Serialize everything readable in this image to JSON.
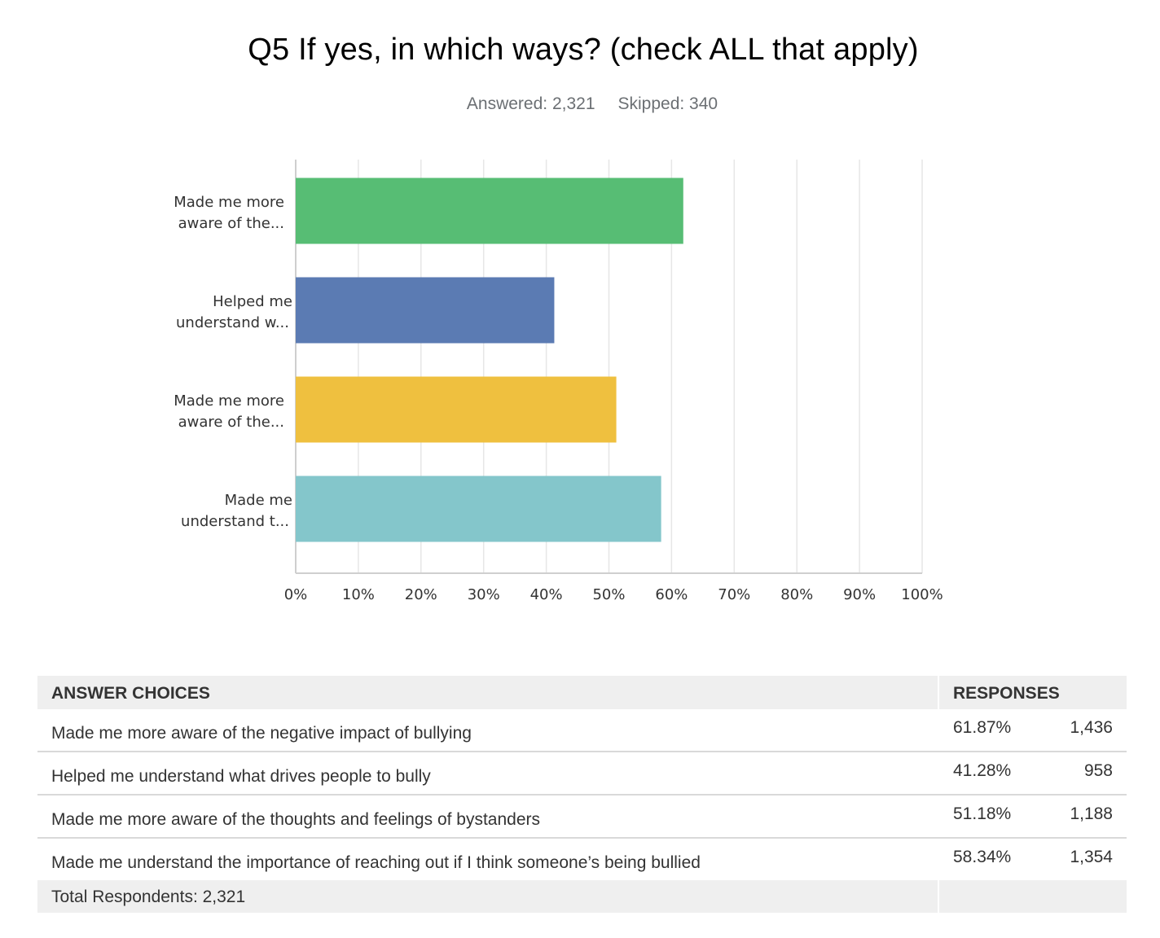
{
  "chart_data": {
    "type": "bar",
    "orientation": "horizontal",
    "title": "Q5 If yes, in which ways? (check ALL that apply)",
    "categories": [
      [
        "Made me more",
        "aware of the..."
      ],
      [
        "Helped me",
        "understand w..."
      ],
      [
        "Made me more",
        "aware of the..."
      ],
      [
        "Made me",
        "understand t..."
      ]
    ],
    "values": [
      61.87,
      41.28,
      51.18,
      58.34
    ],
    "colors": [
      "#57bd74",
      "#5b7bb3",
      "#efc03f",
      "#84c6cb"
    ],
    "xlim": [
      0,
      100
    ],
    "ticks": [
      "0%",
      "10%",
      "20%",
      "30%",
      "40%",
      "50%",
      "60%",
      "70%",
      "80%",
      "90%",
      "100%"
    ],
    "grid": true,
    "xlabel": "",
    "ylabel": ""
  },
  "stats": {
    "answered": "Answered: 2,321",
    "skipped": "Skipped: 340"
  },
  "table": {
    "header_choices": "ANSWER CHOICES",
    "header_responses": "RESPONSES",
    "rows": [
      {
        "choice": "Made me more aware of the negative impact of bullying",
        "pct": "61.87%",
        "count": "1,436"
      },
      {
        "choice": "Helped me understand what drives people to bully",
        "pct": "41.28%",
        "count": "958"
      },
      {
        "choice": "Made me more aware of the thoughts and feelings of bystanders",
        "pct": "51.18%",
        "count": "1,188"
      },
      {
        "choice": "Made me understand the importance of reaching out if I think someone’s being bullied",
        "pct": "58.34%",
        "count": "1,354"
      }
    ],
    "total": "Total Respondents: 2,321"
  }
}
